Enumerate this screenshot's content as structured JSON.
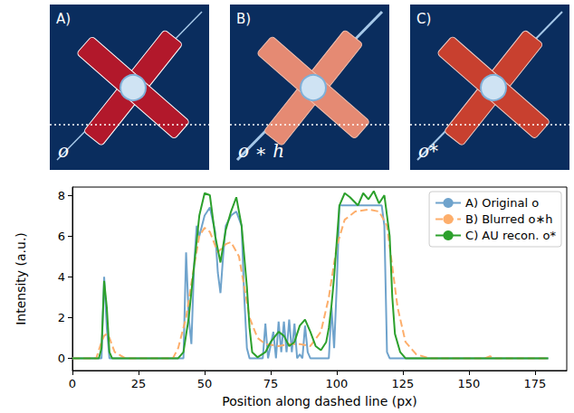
{
  "panels": [
    {
      "letter": "A)",
      "label": "o"
    },
    {
      "letter": "B)",
      "label": "o ∗ h"
    },
    {
      "letter": "C)",
      "label": "o*"
    }
  ],
  "chart_data": {
    "type": "line",
    "x_label": "Position along dashed line (px)",
    "y_label": "Intensity (a.u.)",
    "xlim": [
      0,
      187
    ],
    "xticks": [
      0,
      25,
      50,
      75,
      100,
      125,
      150,
      175
    ],
    "ylim": [
      -0.6,
      8.4
    ],
    "yticks": [
      0,
      2,
      4,
      6,
      8
    ],
    "grid": false,
    "legend": "upper right",
    "series": [
      {
        "name": "A) Original o",
        "color": "#6fa3cc",
        "line_style": "solid",
        "x": [
          0,
          11,
          12,
          13,
          14,
          42,
          43,
          44,
          45,
          46,
          47,
          48,
          50,
          52,
          54,
          55,
          56,
          57,
          58,
          60,
          62,
          64,
          65,
          66,
          67,
          72,
          73,
          74,
          76,
          77,
          78,
          79,
          80,
          81,
          82,
          83,
          84,
          85,
          86,
          87,
          88,
          89,
          90,
          97,
          98,
          99,
          100,
          101,
          117,
          118,
          119,
          120,
          180
        ],
        "values": [
          0,
          0,
          4.0,
          1.5,
          0,
          0,
          5.2,
          2.0,
          0.7,
          4.5,
          6.5,
          6.0,
          7.0,
          7.4,
          6.2,
          4.2,
          3.2,
          5.0,
          6.5,
          7.0,
          7.2,
          6.5,
          3.0,
          0.5,
          0,
          0,
          1.7,
          0,
          1.3,
          0,
          1.8,
          0.3,
          1.8,
          0.3,
          1.9,
          0.3,
          1.7,
          0,
          0.2,
          0,
          1.6,
          0.3,
          0,
          0,
          2.5,
          0.5,
          3.6,
          7.5,
          7.5,
          6.5,
          0.3,
          0,
          0
        ]
      },
      {
        "name": "B) Blurred o∗h",
        "color": "#fdae6b",
        "line_style": "dashed",
        "x": [
          0,
          9,
          11,
          12,
          13,
          14,
          16,
          20,
          38,
          40,
          43,
          46,
          48,
          50,
          52,
          55,
          58,
          60,
          63,
          65,
          67,
          70,
          73,
          78,
          82,
          86,
          90,
          94,
          97,
          100,
          103,
          107,
          112,
          116,
          119,
          121,
          123,
          126,
          130,
          135,
          156,
          158,
          160,
          180
        ],
        "values": [
          0,
          0,
          0.8,
          1.1,
          1.2,
          1.0,
          0.3,
          0,
          0,
          0.5,
          2.0,
          4.5,
          6.0,
          6.4,
          6.2,
          5.2,
          5.6,
          5.7,
          5.0,
          3.5,
          2.0,
          1.0,
          0.7,
          0.6,
          0.7,
          0.7,
          0.6,
          1.3,
          3.0,
          5.5,
          6.8,
          7.2,
          7.3,
          7.2,
          6.5,
          4.5,
          2.5,
          0.8,
          0.2,
          0,
          0,
          0.1,
          0,
          0
        ]
      },
      {
        "name": "C) AU recon. o*",
        "color": "#2ca02c",
        "line_style": "solid",
        "x": [
          0,
          10,
          11,
          12,
          13,
          14,
          15,
          40,
          42,
          44,
          46,
          48,
          50,
          52,
          54,
          56,
          58,
          60,
          62,
          64,
          66,
          67,
          68,
          70,
          73,
          75,
          78,
          80,
          82,
          84,
          86,
          88,
          90,
          92,
          94,
          96,
          97,
          98,
          99,
          101,
          103,
          105,
          108,
          110,
          112,
          114,
          116,
          118,
          120,
          121,
          122,
          124,
          126,
          180
        ],
        "values": [
          0,
          0,
          0.5,
          3.8,
          2.5,
          0.3,
          0,
          0,
          0.3,
          2.0,
          4.5,
          7.0,
          8.1,
          8.0,
          6.0,
          4.7,
          6.3,
          7.2,
          7.9,
          6.5,
          3.5,
          1.5,
          0.3,
          0.05,
          0.3,
          0.8,
          1.3,
          1.1,
          0.6,
          0.8,
          1.6,
          1.9,
          1.3,
          0.6,
          0.4,
          0.8,
          1.5,
          2.6,
          4.0,
          7.5,
          8.1,
          7.9,
          7.5,
          8.1,
          7.8,
          8.2,
          7.6,
          8.0,
          6.0,
          3.0,
          1.2,
          0.3,
          0,
          0
        ]
      }
    ]
  }
}
